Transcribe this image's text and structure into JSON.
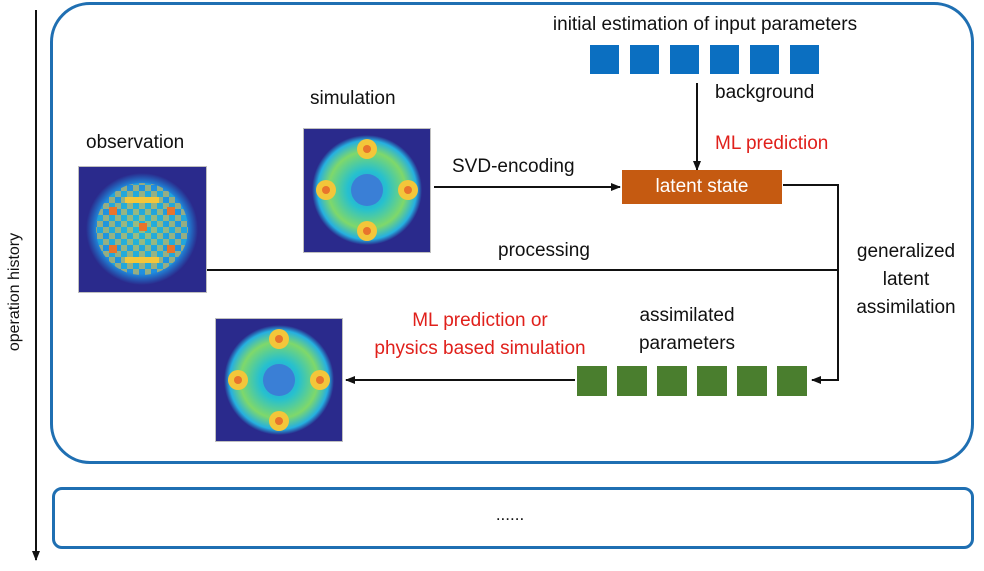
{
  "axis": {
    "label": "operation history"
  },
  "labels": {
    "initial": "initial estimation of input parameters",
    "background": "background",
    "ml_prediction": "ML prediction",
    "latent_state": "latent state",
    "observation": "observation",
    "simulation": "simulation",
    "svd": "SVD-encoding",
    "processing": "processing",
    "gla": "generalized\nlatent\nassimilation",
    "assimilated": "assimilated\nparameters",
    "ml_or_physics": "ML prediction or\nphysics based simulation",
    "ellipsis": "......"
  },
  "colors": {
    "frame_blue": "#1f6fb2",
    "param_blue": "#0b6fc1",
    "param_green": "#4a7e2e",
    "latent_orange": "#c55a11",
    "red_text": "#e0201b",
    "heat_low": "#2a2a8c",
    "heat_mid": "#25b8d8",
    "heat_high": "#f3c63a",
    "heat_peak": "#e8742c"
  },
  "param_counts": {
    "initial": 6,
    "assimilated": 6
  }
}
